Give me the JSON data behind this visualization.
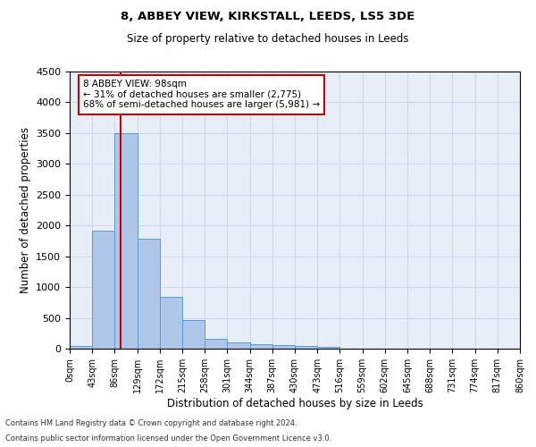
{
  "title1": "8, ABBEY VIEW, KIRKSTALL, LEEDS, LS5 3DE",
  "title2": "Size of property relative to detached houses in Leeds",
  "xlabel": "Distribution of detached houses by size in Leeds",
  "ylabel": "Number of detached properties",
  "bin_labels": [
    "0sqm",
    "43sqm",
    "86sqm",
    "129sqm",
    "172sqm",
    "215sqm",
    "258sqm",
    "301sqm",
    "344sqm",
    "387sqm",
    "430sqm",
    "473sqm",
    "516sqm",
    "559sqm",
    "602sqm",
    "645sqm",
    "688sqm",
    "731sqm",
    "774sqm",
    "817sqm",
    "860sqm"
  ],
  "bar_values": [
    40,
    1920,
    3500,
    1790,
    840,
    460,
    165,
    100,
    70,
    55,
    38,
    30,
    0,
    0,
    0,
    0,
    0,
    0,
    0,
    0
  ],
  "bar_color": "#aec6e8",
  "bar_edge_color": "#5b9bd5",
  "ylim": [
    0,
    4500
  ],
  "yticks": [
    0,
    500,
    1000,
    1500,
    2000,
    2500,
    3000,
    3500,
    4000,
    4500
  ],
  "annotation_text": "8 ABBEY VIEW: 98sqm\n← 31% of detached houses are smaller (2,775)\n68% of semi-detached houses are larger (5,981) →",
  "annotation_box_color": "#ffffff",
  "annotation_border_color": "#cc0000",
  "footer_line1": "Contains HM Land Registry data © Crown copyright and database right 2024.",
  "footer_line2": "Contains public sector information licensed under the Open Government Licence v3.0.",
  "grid_color": "#d0d8e8",
  "background_color": "#e8eef8",
  "vline_color": "#cc0000",
  "vline_x": 2.28
}
